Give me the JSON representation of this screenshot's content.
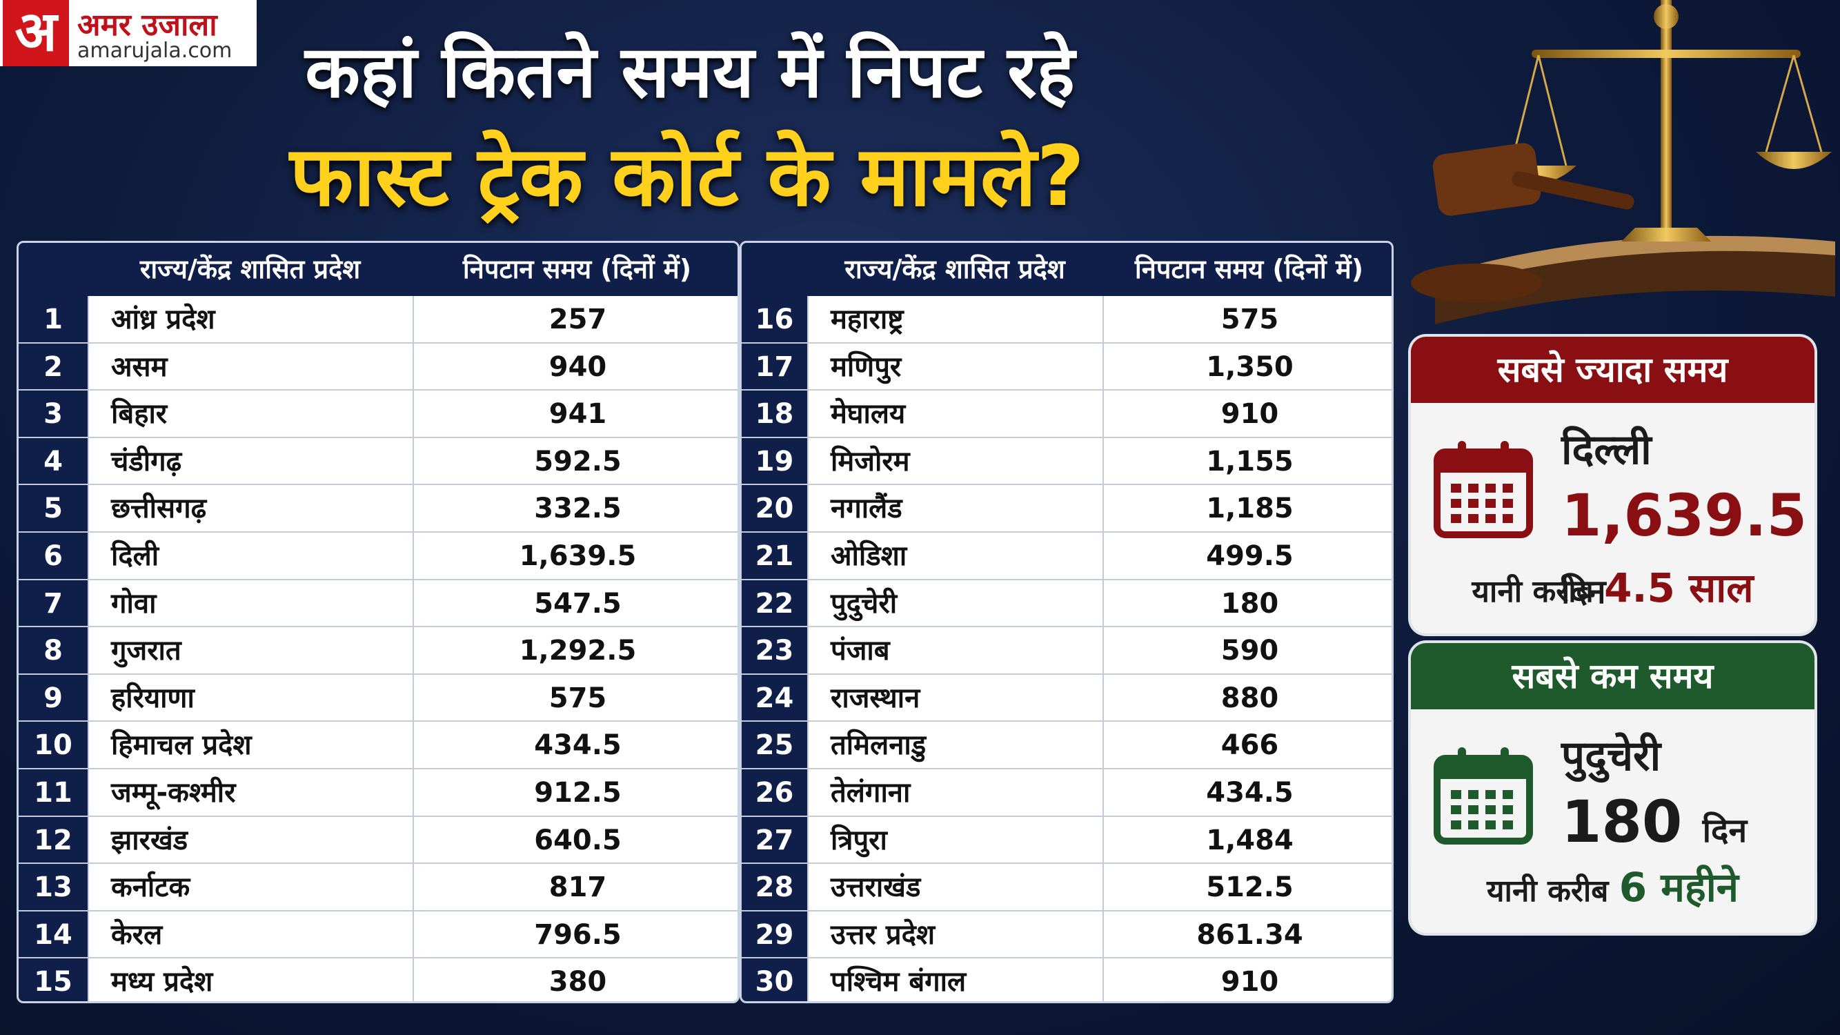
{
  "logo": {
    "letter": "अ",
    "name": "अमर उजाला",
    "site": "amarujala.com"
  },
  "title": {
    "line1": "कहां कितने समय में निपट रहे",
    "line2": "फास्ट ट्रेक कोर्ट के मामले?"
  },
  "table": {
    "headers": [
      "राज्य/केंद्र शासित प्रदेश",
      "निपटान समय (दिनों में)"
    ],
    "rows": [
      [
        "1",
        "आंध्र प्रदेश",
        "257"
      ],
      [
        "2",
        "असम",
        "940"
      ],
      [
        "3",
        "बिहार",
        "941"
      ],
      [
        "4",
        "चंडीगढ़",
        "592.5"
      ],
      [
        "5",
        "छत्तीसगढ़",
        "332.5"
      ],
      [
        "6",
        "दिली",
        "1,639.5"
      ],
      [
        "7",
        "गोवा",
        "547.5"
      ],
      [
        "8",
        "गुजरात",
        "1,292.5"
      ],
      [
        "9",
        "हरियाणा",
        "575"
      ],
      [
        "10",
        "हिमाचल प्रदेश",
        "434.5"
      ],
      [
        "11",
        "जम्मू-कश्मीर",
        "912.5"
      ],
      [
        "12",
        "झारखंड",
        "640.5"
      ],
      [
        "13",
        "कर्नाटक",
        "817"
      ],
      [
        "14",
        "केरल",
        "796.5"
      ],
      [
        "15",
        "मध्य प्रदेश",
        "380"
      ],
      [
        "16",
        "महाराष्ट्र",
        "575"
      ],
      [
        "17",
        "मणिपुर",
        "1,350"
      ],
      [
        "18",
        "मेघालय",
        "910"
      ],
      [
        "19",
        "मिजोरम",
        "1,155"
      ],
      [
        "20",
        "नगालैंड",
        "1,185"
      ],
      [
        "21",
        "ओडिशा",
        "499.5"
      ],
      [
        "22",
        "पुदुचेरी",
        "180"
      ],
      [
        "23",
        "पंजाब",
        "590"
      ],
      [
        "24",
        "राजस्थान",
        "880"
      ],
      [
        "25",
        "तमिलनाडु",
        "466"
      ],
      [
        "26",
        "तेलंगाना",
        "434.5"
      ],
      [
        "27",
        "त्रिपुरा",
        "1,484"
      ],
      [
        "28",
        "उत्तराखंड",
        "512.5"
      ],
      [
        "29",
        "उत्तर प्रदेश",
        "861.34"
      ],
      [
        "30",
        "पश्चिम बंगाल",
        "910"
      ]
    ]
  },
  "cards": [
    {
      "heading": "सबसे ज्यादा समय",
      "place": "दिल्ली",
      "value": "1,639.5",
      "unit": "दिन",
      "note": "यानी करीब",
      "duration": "4.5 साल"
    },
    {
      "heading": "सबसे कम समय",
      "place": "पुदुचेरी",
      "value": "180",
      "unit": "दिन",
      "note": "यानी करीब",
      "duration": "6 महीने"
    }
  ]
}
